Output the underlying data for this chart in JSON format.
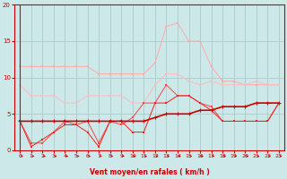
{
  "x": [
    0,
    1,
    2,
    3,
    4,
    5,
    6,
    7,
    8,
    9,
    10,
    11,
    12,
    13,
    14,
    15,
    16,
    17,
    18,
    19,
    20,
    21,
    22,
    23
  ],
  "line_rafales_max": [
    11.5,
    11.5,
    11.5,
    11.5,
    11.5,
    11.5,
    11.5,
    10.5,
    10.5,
    10.5,
    10.5,
    10.5,
    12.0,
    17.0,
    17.5,
    15.0,
    15.0,
    11.5,
    9.5,
    9.5,
    9.0,
    9.0,
    9.0,
    9.0
  ],
  "line_rafales_mid": [
    9.0,
    7.5,
    7.5,
    7.5,
    6.5,
    6.5,
    7.5,
    7.5,
    7.5,
    7.5,
    6.5,
    6.5,
    9.0,
    10.5,
    10.5,
    9.5,
    9.0,
    9.5,
    9.0,
    9.0,
    9.0,
    9.5,
    9.0,
    9.0
  ],
  "line_vent_median": [
    4.0,
    4.0,
    4.0,
    4.0,
    4.0,
    4.0,
    4.0,
    4.0,
    4.0,
    4.0,
    4.0,
    4.0,
    4.5,
    5.0,
    5.0,
    5.0,
    5.5,
    5.5,
    6.0,
    6.0,
    6.0,
    6.5,
    6.5,
    6.5
  ],
  "line_vent_haut": [
    4.0,
    1.0,
    1.0,
    2.5,
    4.0,
    3.5,
    4.0,
    1.0,
    4.0,
    3.5,
    4.5,
    6.5,
    6.5,
    9.0,
    7.5,
    7.5,
    6.5,
    6.0,
    4.0,
    4.0,
    4.0,
    4.0,
    4.0,
    6.5
  ],
  "line_vent_bas": [
    4.0,
    0.5,
    1.5,
    2.5,
    3.5,
    3.5,
    2.5,
    0.5,
    4.0,
    4.0,
    2.5,
    2.5,
    6.5,
    6.5,
    7.5,
    7.5,
    6.5,
    5.5,
    4.0,
    4.0,
    4.0,
    4.0,
    4.0,
    6.5
  ],
  "background": "#cce8e8",
  "grid_color": "#aacccc",
  "color_light1": "#ffaaaa",
  "color_light2": "#ffbbbb",
  "color_dark1": "#cc0000",
  "color_dark2": "#ff4444",
  "color_dark3": "#ee2222",
  "xlabel": "Vent moyen/en rafales ( km/h )",
  "ylim": [
    0,
    20
  ],
  "xlim": [
    -0.5,
    23.5
  ],
  "yticks": [
    0,
    5,
    10,
    15,
    20
  ],
  "xticks": [
    0,
    1,
    2,
    3,
    4,
    5,
    6,
    7,
    8,
    9,
    10,
    11,
    12,
    13,
    14,
    15,
    16,
    17,
    18,
    19,
    20,
    21,
    22,
    23
  ]
}
